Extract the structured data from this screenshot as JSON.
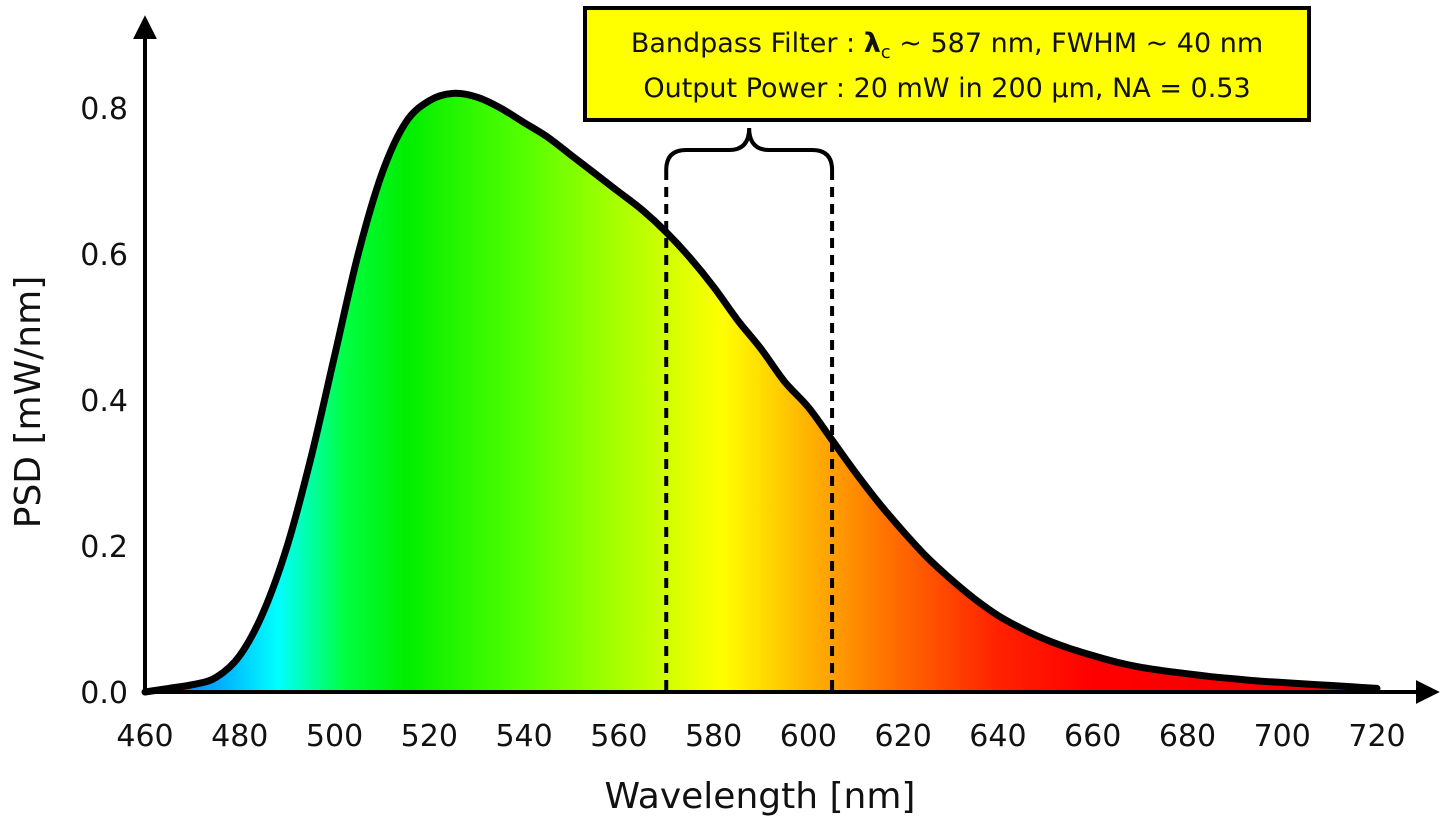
{
  "chart_data": {
    "type": "area",
    "xlabel": "Wavelength [nm]",
    "ylabel": "PSD [mW/nm]",
    "xlim": [
      460,
      720
    ],
    "ylim": [
      0,
      0.8
    ],
    "x_ticks": [
      "460",
      "480",
      "500",
      "520",
      "540",
      "560",
      "580",
      "600",
      "620",
      "640",
      "660",
      "680",
      "700",
      "720"
    ],
    "y_ticks": [
      "0.0",
      "0.2",
      "0.4",
      "0.6",
      "0.8"
    ],
    "grid": false,
    "fill": "visible-spectrum gradient",
    "line_color": "#000000",
    "series": [
      {
        "x": [
          460,
          465,
          470,
          475,
          480,
          485,
          490,
          495,
          500,
          505,
          510,
          515,
          520,
          525,
          530,
          535,
          540,
          545,
          550,
          555,
          560,
          565,
          570,
          575,
          580,
          585,
          590,
          595,
          600,
          605,
          610,
          615,
          620,
          625,
          630,
          635,
          640,
          645,
          650,
          655,
          660,
          665,
          670,
          675,
          680,
          685,
          690,
          695,
          700,
          705,
          710,
          715,
          720
        ],
        "values": [
          0.0,
          0.005,
          0.01,
          0.02,
          0.05,
          0.11,
          0.2,
          0.32,
          0.46,
          0.6,
          0.71,
          0.78,
          0.81,
          0.82,
          0.815,
          0.8,
          0.78,
          0.76,
          0.735,
          0.71,
          0.685,
          0.66,
          0.63,
          0.595,
          0.555,
          0.51,
          0.47,
          0.425,
          0.39,
          0.345,
          0.3,
          0.258,
          0.22,
          0.185,
          0.155,
          0.128,
          0.105,
          0.087,
          0.072,
          0.06,
          0.05,
          0.041,
          0.034,
          0.029,
          0.025,
          0.021,
          0.018,
          0.015,
          0.013,
          0.011,
          0.009,
          0.007,
          0.005
        ]
      }
    ],
    "band": {
      "x1": 570,
      "x2": 605
    },
    "annotation": {
      "line1_prefix": "Bandpass Filter : ",
      "lambda_symbol": "λ",
      "lambda_sub": "c",
      "line1_suffix": " ~ 587 nm, FWHM ~ 40 nm",
      "line2": "Output Power : 20 mW in 200 μm, NA = 0.53",
      "background": "#ffff00",
      "border": "#000000"
    },
    "spectrum_colors": [
      {
        "nm": 460,
        "color": "#1a6cff"
      },
      {
        "nm": 475,
        "color": "#00aaff"
      },
      {
        "nm": 488,
        "color": "#00ffff"
      },
      {
        "nm": 502,
        "color": "#00ff44"
      },
      {
        "nm": 515,
        "color": "#00ee00"
      },
      {
        "nm": 540,
        "color": "#55ff00"
      },
      {
        "nm": 560,
        "color": "#aaff00"
      },
      {
        "nm": 582,
        "color": "#ffff00"
      },
      {
        "nm": 598,
        "color": "#ffbb00"
      },
      {
        "nm": 615,
        "color": "#ff7700"
      },
      {
        "nm": 640,
        "color": "#ff2200"
      },
      {
        "nm": 660,
        "color": "#ff0000"
      },
      {
        "nm": 720,
        "color": "#ee0000"
      }
    ]
  }
}
